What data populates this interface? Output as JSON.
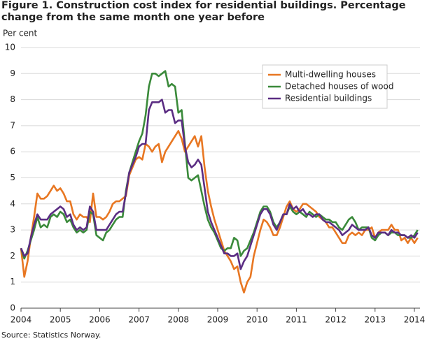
{
  "chart_data": {
    "type": "line",
    "title": "Figure 1. Construction cost index for residential buildings. Percentage change from the same month one year before",
    "y_label": "Per cent",
    "source": "Source: Statistics Norway.",
    "categories": [
      "2004",
      null,
      null,
      null,
      null,
      null,
      null,
      null,
      null,
      null,
      null,
      null,
      "2005",
      null,
      null,
      null,
      null,
      null,
      null,
      null,
      null,
      null,
      null,
      null,
      "2006",
      null,
      null,
      null,
      null,
      null,
      null,
      null,
      null,
      null,
      null,
      null,
      "2007",
      null,
      null,
      null,
      null,
      null,
      null,
      null,
      null,
      null,
      null,
      null,
      "2008",
      null,
      null,
      null,
      null,
      null,
      null,
      null,
      null,
      null,
      null,
      null,
      "2009",
      null,
      null,
      null,
      null,
      null,
      null,
      null,
      null,
      null,
      null,
      null,
      "2010",
      null,
      null,
      null,
      null,
      null,
      null,
      null,
      null,
      null,
      null,
      null,
      "2011",
      null,
      null,
      null,
      null,
      null,
      null,
      null,
      null,
      null,
      null,
      null,
      "2012",
      null,
      null,
      null,
      null,
      null,
      null,
      null,
      null,
      null,
      null,
      null,
      "2013",
      null,
      null,
      null,
      null,
      null,
      null,
      null,
      null,
      null,
      null,
      null,
      "2014",
      null
    ],
    "series": [
      {
        "name": "Multi-dwelling houses",
        "color": "#e87722",
        "values": [
          2.3,
          1.2,
          1.8,
          2.7,
          3.5,
          4.4,
          4.2,
          4.2,
          4.3,
          4.5,
          4.7,
          4.5,
          4.6,
          4.4,
          4.1,
          4.1,
          3.6,
          3.4,
          3.6,
          3.5,
          3.5,
          3.3,
          4.4,
          3.5,
          3.5,
          3.4,
          3.5,
          3.7,
          4.0,
          4.1,
          4.1,
          4.2,
          4.3,
          5.1,
          5.4,
          5.7,
          5.8,
          5.7,
          6.3,
          6.2,
          6.0,
          6.2,
          6.3,
          5.6,
          6.0,
          6.2,
          6.4,
          6.6,
          6.8,
          6.5,
          6.0,
          6.2,
          6.4,
          6.6,
          6.2,
          6.6,
          5.4,
          4.5,
          3.9,
          3.4,
          3.0,
          2.6,
          2.2,
          2.0,
          1.8,
          1.5,
          1.6,
          1.0,
          0.6,
          1.0,
          1.2,
          2.0,
          2.5,
          3.0,
          3.4,
          3.3,
          3.1,
          2.8,
          2.8,
          3.1,
          3.5,
          3.9,
          4.1,
          3.8,
          3.7,
          3.8,
          4.0,
          4.0,
          3.9,
          3.8,
          3.7,
          3.5,
          3.4,
          3.3,
          3.1,
          3.1,
          2.9,
          2.7,
          2.5,
          2.5,
          2.8,
          2.9,
          2.8,
          2.9,
          2.8,
          3.0,
          3.0,
          3.1,
          2.7,
          2.9,
          3.0,
          3.0,
          3.0,
          3.2,
          3.0,
          3.0,
          2.6,
          2.7,
          2.5,
          2.7,
          2.5,
          2.7
        ]
      },
      {
        "name": "Detached houses of wood",
        "color": "#3a8a3a",
        "values": [
          2.3,
          1.9,
          2.2,
          2.6,
          3.0,
          3.5,
          3.1,
          3.2,
          3.1,
          3.5,
          3.6,
          3.5,
          3.7,
          3.6,
          3.3,
          3.4,
          3.1,
          2.9,
          3.0,
          2.9,
          3.0,
          3.7,
          3.6,
          2.8,
          2.7,
          2.6,
          2.9,
          3.0,
          3.2,
          3.4,
          3.5,
          3.5,
          4.5,
          5.2,
          5.6,
          6.0,
          6.4,
          6.7,
          7.4,
          8.5,
          9.0,
          9.0,
          8.9,
          9.0,
          9.1,
          8.5,
          8.6,
          8.5,
          7.5,
          7.6,
          6.3,
          5.0,
          4.9,
          5.0,
          5.1,
          4.5,
          3.9,
          3.4,
          3.1,
          2.9,
          2.6,
          2.3,
          2.2,
          2.3,
          2.3,
          2.7,
          2.6,
          2.0,
          2.2,
          2.3,
          2.6,
          2.9,
          3.3,
          3.7,
          3.9,
          3.9,
          3.7,
          3.3,
          3.1,
          3.3,
          3.6,
          3.6,
          3.9,
          3.7,
          3.6,
          3.7,
          3.6,
          3.5,
          3.7,
          3.6,
          3.5,
          3.6,
          3.5,
          3.4,
          3.4,
          3.3,
          3.3,
          3.1,
          3.0,
          3.2,
          3.4,
          3.5,
          3.3,
          3.0,
          3.1,
          3.1,
          3.1,
          2.7,
          2.6,
          2.8,
          2.9,
          2.9,
          2.8,
          2.9,
          2.9,
          2.8,
          2.8,
          2.8,
          2.7,
          2.7,
          2.8,
          3.0
        ]
      },
      {
        "name": "Residential buildings",
        "color": "#5b2d83",
        "values": [
          2.3,
          2.0,
          2.1,
          2.7,
          3.2,
          3.6,
          3.4,
          3.4,
          3.4,
          3.6,
          3.7,
          3.8,
          3.9,
          3.8,
          3.5,
          3.6,
          3.2,
          3.0,
          3.1,
          3.0,
          3.1,
          3.9,
          3.7,
          3.0,
          3.0,
          3.0,
          3.0,
          3.2,
          3.4,
          3.6,
          3.7,
          3.7,
          4.4,
          5.2,
          5.5,
          5.8,
          6.2,
          6.3,
          6.3,
          7.6,
          7.9,
          7.9,
          7.9,
          8.0,
          7.5,
          7.6,
          7.6,
          7.1,
          7.2,
          7.2,
          6.2,
          5.6,
          5.4,
          5.5,
          5.7,
          5.5,
          4.6,
          3.7,
          3.3,
          3.0,
          2.7,
          2.4,
          2.1,
          2.1,
          2.0,
          2.0,
          2.1,
          1.5,
          1.8,
          2.0,
          2.4,
          2.8,
          3.2,
          3.6,
          3.8,
          3.8,
          3.6,
          3.2,
          3.0,
          3.3,
          3.6,
          3.6,
          4.0,
          3.8,
          3.9,
          3.7,
          3.8,
          3.6,
          3.6,
          3.5,
          3.6,
          3.6,
          3.4,
          3.3,
          3.3,
          3.2,
          3.1,
          3.0,
          2.8,
          2.9,
          3.0,
          3.2,
          3.1,
          3.0,
          3.0,
          3.0,
          3.1,
          2.8,
          2.7,
          2.9,
          2.9,
          2.9,
          2.8,
          3.0,
          2.9,
          2.9,
          2.8,
          2.8,
          2.7,
          2.8,
          2.7,
          2.9
        ]
      }
    ],
    "ylim": [
      0,
      10
    ],
    "yticks": [
      0,
      1,
      2,
      3,
      4,
      5,
      6,
      7,
      8,
      9,
      10
    ],
    "grid": true,
    "legend": "upper right"
  }
}
